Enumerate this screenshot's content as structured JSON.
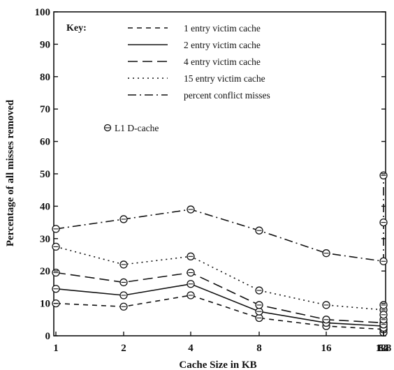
{
  "chart_data": {
    "type": "line",
    "title": "",
    "xlabel": "Cache Size in KB",
    "ylabel": "Percentage of all misses removed",
    "categories": [
      "1",
      "2",
      "4",
      "8",
      "16",
      "32",
      "64",
      "128"
    ],
    "ylim": [
      0,
      100
    ],
    "yticks": [
      "0",
      "10",
      "20",
      "30",
      "40",
      "50",
      "60",
      "70",
      "80",
      "90",
      "100"
    ],
    "grid": false,
    "legend_position": "top-left",
    "legend_title": "Key:",
    "marker_label": "L1 D-cache",
    "series": [
      {
        "name": "1 entry victim cache",
        "dash": "short-dash",
        "values": [
          10,
          9,
          12.5,
          5.5,
          3,
          2,
          1,
          2
        ]
      },
      {
        "name": "2 entry victim cache",
        "dash": "solid",
        "values": [
          14.5,
          12.5,
          16,
          7.5,
          4,
          3,
          2.5,
          3.5
        ]
      },
      {
        "name": "4 entry victim cache",
        "dash": "long-dash",
        "values": [
          19.5,
          16.5,
          19.5,
          9.5,
          5,
          4,
          3.5,
          5
        ]
      },
      {
        "name": "15 entry victim cache",
        "dash": "dotted",
        "values": [
          27.5,
          22,
          24.5,
          14,
          9.5,
          8,
          6.5,
          9.5
        ]
      },
      {
        "name": "percent conflict misses",
        "dash": "dash-dot",
        "values": [
          33,
          36,
          39,
          32.5,
          25.5,
          23,
          35,
          49.5
        ]
      }
    ]
  }
}
